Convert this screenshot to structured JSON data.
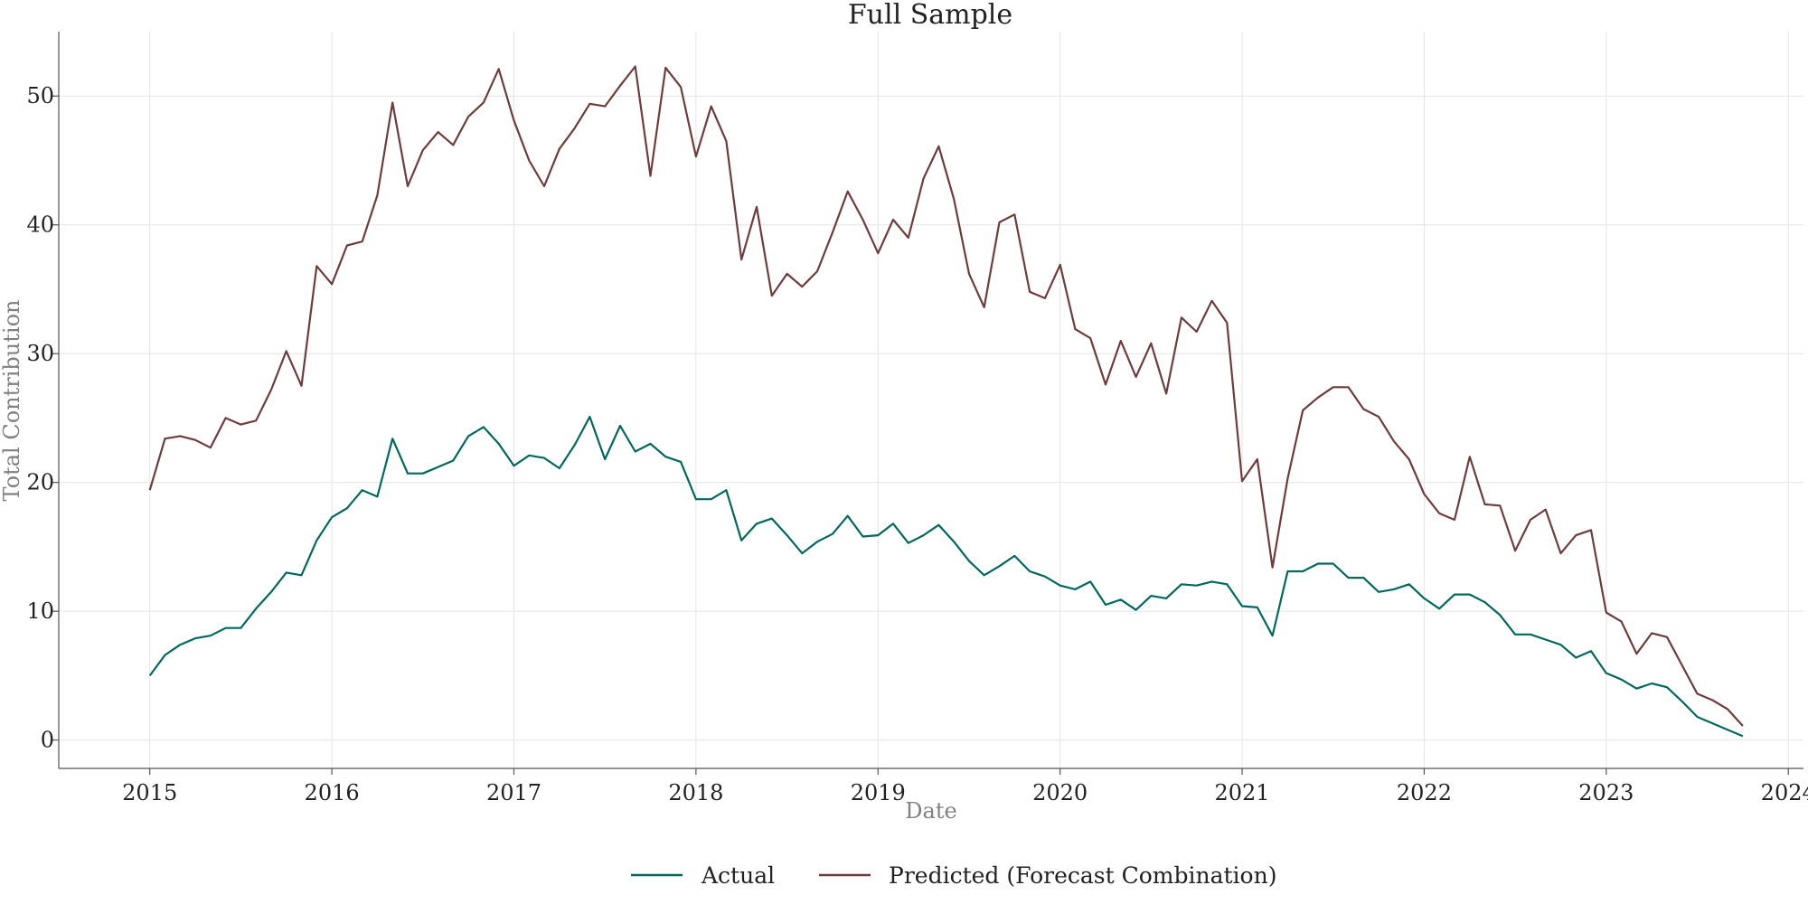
{
  "chart_data": {
    "type": "line",
    "title": "Full Sample",
    "xlabel": "Date",
    "ylabel": "Total Contribution",
    "x_start": "2015-01",
    "x_frequency": "monthly",
    "xlim": [
      "2014-07",
      "2024-02"
    ],
    "ylim": [
      -2.2,
      55
    ],
    "x_ticks": [
      "2015",
      "2016",
      "2017",
      "2018",
      "2019",
      "2020",
      "2021",
      "2022",
      "2023",
      "2024"
    ],
    "y_ticks": [
      0,
      10,
      20,
      30,
      40,
      50
    ],
    "grid": true,
    "legend_position": "bottom-center",
    "series": [
      {
        "name": "Actual",
        "color": "#00695c",
        "values": [
          5.0,
          6.6,
          7.4,
          7.9,
          8.1,
          8.7,
          8.7,
          10.2,
          11.5,
          13.0,
          12.8,
          15.5,
          17.3,
          18.0,
          19.4,
          18.9,
          23.4,
          20.7,
          20.7,
          21.2,
          21.7,
          23.6,
          24.3,
          23.0,
          21.3,
          22.1,
          21.9,
          21.1,
          22.9,
          25.1,
          21.8,
          24.4,
          22.4,
          23.0,
          22.0,
          21.6,
          18.7,
          18.7,
          19.4,
          15.5,
          16.8,
          17.2,
          15.9,
          14.5,
          15.4,
          16.0,
          17.4,
          15.8,
          15.9,
          16.8,
          15.3,
          15.9,
          16.7,
          15.4,
          13.9,
          12.8,
          13.5,
          14.3,
          13.1,
          12.7,
          12.0,
          11.7,
          12.3,
          10.5,
          10.9,
          10.1,
          11.2,
          11.0,
          12.1,
          12.0,
          12.3,
          12.1,
          10.4,
          10.3,
          8.1,
          13.1,
          13.1,
          13.7,
          13.7,
          12.6,
          12.6,
          11.5,
          11.7,
          12.1,
          11.0,
          10.2,
          11.3,
          11.3,
          10.7,
          9.7,
          8.2,
          8.2,
          7.8,
          7.4,
          6.4,
          6.9,
          5.2,
          4.7,
          4.0,
          4.4,
          4.1,
          3.0,
          1.8,
          1.3,
          0.8,
          0.3
        ]
      },
      {
        "name": "Predicted (Forecast Combination)",
        "color": "#6e3c3c",
        "values": [
          19.4,
          23.4,
          23.6,
          23.3,
          22.7,
          25.0,
          24.5,
          24.8,
          27.2,
          30.2,
          27.5,
          36.8,
          35.4,
          38.4,
          38.7,
          42.3,
          49.5,
          43.0,
          45.8,
          47.2,
          46.2,
          48.4,
          49.5,
          52.1,
          48.1,
          45.0,
          43.0,
          45.9,
          47.5,
          49.4,
          49.2,
          50.8,
          52.3,
          43.8,
          52.2,
          50.7,
          45.3,
          49.2,
          46.5,
          37.3,
          41.4,
          34.5,
          36.2,
          35.2,
          36.4,
          39.4,
          42.6,
          40.4,
          37.8,
          40.4,
          39.0,
          43.6,
          46.1,
          42.0,
          36.2,
          33.6,
          40.2,
          40.8,
          34.8,
          34.3,
          36.9,
          31.9,
          31.2,
          27.6,
          31.0,
          28.2,
          30.8,
          26.9,
          32.8,
          31.7,
          34.1,
          32.4,
          20.1,
          21.8,
          13.4,
          20.3,
          25.6,
          26.6,
          27.4,
          27.4,
          25.7,
          25.1,
          23.2,
          21.8,
          19.1,
          17.6,
          17.1,
          22.0,
          18.3,
          18.2,
          14.7,
          17.1,
          17.9,
          14.5,
          15.9,
          16.3,
          9.9,
          9.2,
          6.7,
          8.3,
          8.0,
          5.8,
          3.6,
          3.1,
          2.4,
          1.1
        ]
      }
    ]
  }
}
